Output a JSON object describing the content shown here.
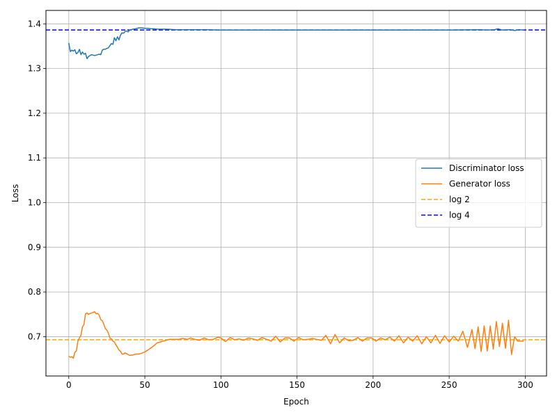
{
  "chart_data": {
    "type": "line",
    "title": "",
    "xlabel": "Epoch",
    "ylabel": "Loss",
    "xlim": [
      -15,
      314
    ],
    "ylim": [
      0.612,
      1.43
    ],
    "xticks": [
      0,
      50,
      100,
      150,
      200,
      250,
      300
    ],
    "yticks": [
      0.7,
      0.8,
      0.9,
      1.0,
      1.1,
      1.2,
      1.3,
      1.4
    ],
    "xtick_labels": [
      "0",
      "50",
      "100",
      "150",
      "200",
      "250",
      "300"
    ],
    "ytick_labels": [
      "0.7",
      "0.8",
      "0.9",
      "1.0",
      "1.1",
      "1.2",
      "1.3",
      "1.4"
    ],
    "grid": true,
    "legend_position": "center-right",
    "series": [
      {
        "name": "Discriminator loss",
        "color": "#1f77b4",
        "style": "solid",
        "x": [
          0,
          1,
          2,
          3,
          4,
          5,
          6,
          7,
          8,
          9,
          10,
          11,
          12,
          13,
          14,
          15,
          16,
          17,
          18,
          19,
          20,
          21,
          22,
          23,
          24,
          25,
          26,
          27,
          28,
          29,
          30,
          31,
          32,
          33,
          34,
          35,
          36,
          37,
          38,
          39,
          40,
          42,
          44,
          46,
          48,
          50,
          52,
          54,
          56,
          58,
          60,
          65,
          70,
          75,
          80,
          90,
          100,
          120,
          150,
          200,
          250,
          270,
          275,
          280,
          282,
          285,
          290,
          293,
          296,
          299
        ],
        "y": [
          1.357,
          1.338,
          1.341,
          1.339,
          1.342,
          1.333,
          1.336,
          1.343,
          1.331,
          1.337,
          1.332,
          1.334,
          1.322,
          1.327,
          1.329,
          1.331,
          1.33,
          1.329,
          1.33,
          1.331,
          1.332,
          1.331,
          1.341,
          1.343,
          1.343,
          1.345,
          1.346,
          1.351,
          1.356,
          1.354,
          1.369,
          1.362,
          1.371,
          1.364,
          1.375,
          1.38,
          1.379,
          1.383,
          1.384,
          1.382,
          1.386,
          1.388,
          1.389,
          1.391,
          1.391,
          1.39,
          1.39,
          1.389,
          1.389,
          1.388,
          1.388,
          1.388,
          1.387,
          1.387,
          1.387,
          1.387,
          1.386,
          1.386,
          1.386,
          1.386,
          1.386,
          1.387,
          1.386,
          1.387,
          1.389,
          1.386,
          1.387,
          1.385,
          1.387,
          1.386
        ]
      },
      {
        "name": "Generator loss",
        "color": "#ff7f0e",
        "style": "solid",
        "x": [
          0,
          1,
          2,
          3,
          4,
          5,
          6,
          7,
          8,
          9,
          10,
          11,
          12,
          13,
          14,
          15,
          16,
          17,
          18,
          19,
          20,
          21,
          22,
          23,
          24,
          25,
          26,
          27,
          28,
          29,
          30,
          31,
          32,
          33,
          34,
          35,
          36,
          37,
          38,
          39,
          40,
          42,
          44,
          46,
          48,
          50,
          52,
          54,
          56,
          58,
          60,
          62,
          64,
          66,
          68,
          70,
          72,
          75,
          78,
          80,
          83,
          86,
          89,
          92,
          95,
          98,
          100,
          103,
          106,
          109,
          112,
          115,
          118,
          121,
          124,
          127,
          130,
          133,
          136,
          139,
          142,
          145,
          148,
          151,
          154,
          157,
          160,
          163,
          166,
          169,
          172,
          175,
          178,
          181,
          184,
          187,
          190,
          193,
          196,
          199,
          202,
          205,
          208,
          211,
          214,
          217,
          220,
          223,
          226,
          229,
          232,
          235,
          238,
          241,
          244,
          247,
          250,
          253,
          256,
          259,
          262,
          265,
          267,
          269,
          271,
          273,
          275,
          277,
          279,
          281,
          283,
          285,
          287,
          289,
          291,
          293,
          295,
          297,
          299
        ],
        "y": [
          0.656,
          0.654,
          0.655,
          0.652,
          0.665,
          0.668,
          0.69,
          0.697,
          0.703,
          0.722,
          0.727,
          0.751,
          0.753,
          0.75,
          0.752,
          0.753,
          0.754,
          0.756,
          0.751,
          0.752,
          0.748,
          0.738,
          0.736,
          0.728,
          0.718,
          0.715,
          0.708,
          0.697,
          0.695,
          0.69,
          0.688,
          0.682,
          0.676,
          0.67,
          0.667,
          0.661,
          0.661,
          0.664,
          0.662,
          0.66,
          0.658,
          0.659,
          0.661,
          0.661,
          0.663,
          0.666,
          0.67,
          0.675,
          0.68,
          0.686,
          0.688,
          0.69,
          0.692,
          0.694,
          0.694,
          0.694,
          0.694,
          0.696,
          0.694,
          0.697,
          0.694,
          0.692,
          0.697,
          0.693,
          0.694,
          0.699,
          0.697,
          0.689,
          0.698,
          0.693,
          0.695,
          0.692,
          0.697,
          0.695,
          0.692,
          0.698,
          0.694,
          0.69,
          0.701,
          0.688,
          0.697,
          0.697,
          0.69,
          0.698,
          0.693,
          0.694,
          0.696,
          0.694,
          0.692,
          0.703,
          0.684,
          0.705,
          0.686,
          0.697,
          0.691,
          0.692,
          0.698,
          0.69,
          0.697,
          0.697,
          0.69,
          0.697,
          0.693,
          0.699,
          0.69,
          0.702,
          0.686,
          0.699,
          0.69,
          0.702,
          0.684,
          0.7,
          0.686,
          0.703,
          0.685,
          0.702,
          0.688,
          0.701,
          0.69,
          0.712,
          0.676,
          0.716,
          0.673,
          0.722,
          0.667,
          0.724,
          0.668,
          0.724,
          0.672,
          0.734,
          0.678,
          0.73,
          0.674,
          0.737,
          0.66,
          0.7,
          0.69,
          0.69,
          0.69
        ],
        "x_tail": [],
        "y_tail": []
      },
      {
        "name": "log 2",
        "color": "#ffa500",
        "style": "dashed",
        "x": [
          -15,
          314
        ],
        "y": [
          0.6931,
          0.6931
        ]
      },
      {
        "name": "log 4",
        "color": "#0000ff",
        "style": "dashed",
        "x": [
          -15,
          314
        ],
        "y": [
          1.3863,
          1.3863
        ]
      }
    ],
    "legend": [
      "Discriminator loss",
      "Generator loss",
      "log 2",
      "log 4"
    ]
  }
}
